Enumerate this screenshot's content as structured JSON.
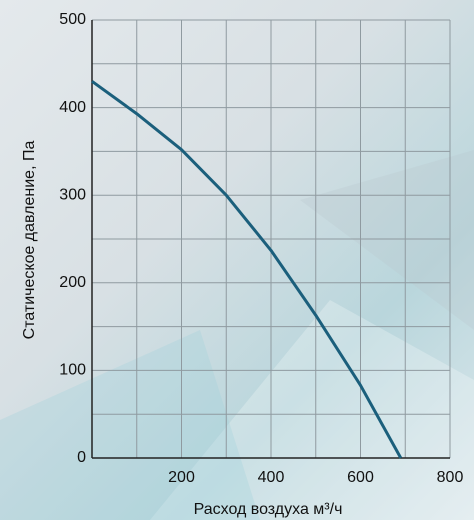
{
  "chart_data": {
    "type": "line",
    "x_label": "Расход воздуха м³/ч",
    "y_label": "Статическое давление, Па",
    "x": [
      0,
      100,
      200,
      300,
      400,
      500,
      600,
      690
    ],
    "series": [
      {
        "color": "#1b5f7c",
        "values": [
          430,
          393,
          352,
          300,
          237,
          163,
          83,
          0
        ]
      }
    ],
    "xlim": [
      0,
      800
    ],
    "ylim": [
      0,
      500
    ],
    "xticks": [
      200,
      400,
      600,
      800
    ],
    "yticks": [
      0,
      100,
      200,
      300,
      400,
      500
    ],
    "x_minor_grid": [
      100,
      300,
      500,
      700
    ],
    "y_minor_grid": [
      50,
      150,
      250,
      350,
      450
    ],
    "grid": true
  }
}
